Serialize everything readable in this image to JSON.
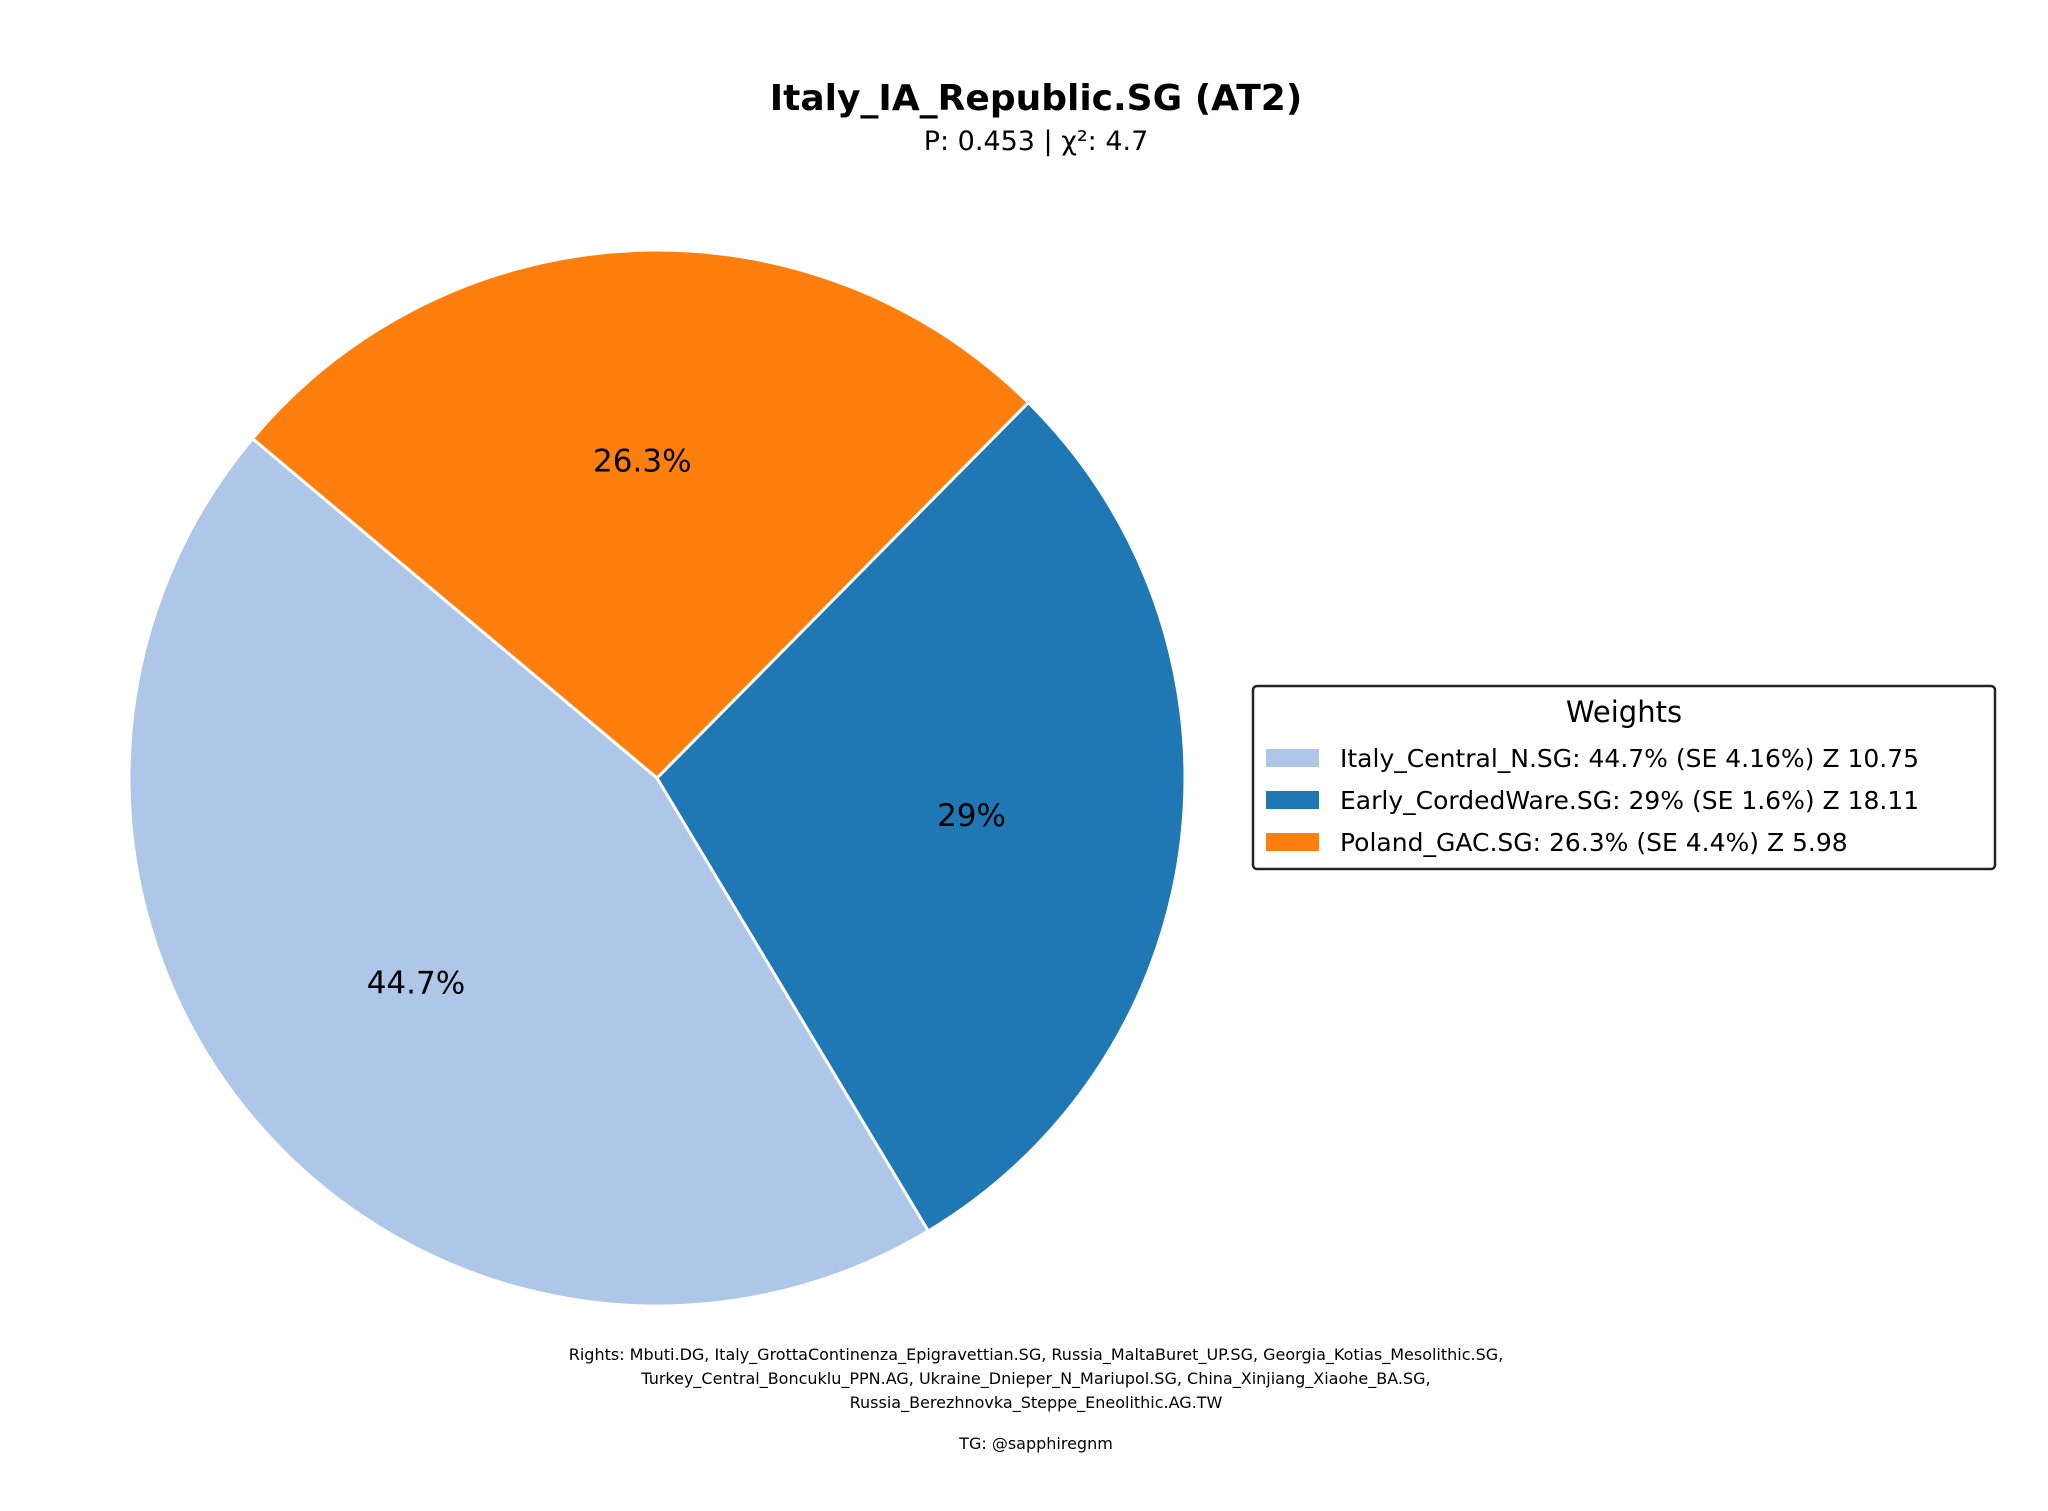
{
  "chart_data": {
    "type": "pie",
    "title": "Italy_IA_Republic.SG (AT2)",
    "subtitle": "P: 0.453 | χ²: 4.7",
    "start_angle_deg": 140,
    "direction": "counterclockwise",
    "slices": [
      {
        "name": "Italy_Central_N.SG",
        "value": 44.7,
        "label": "44.7%",
        "color": "#aec7e8",
        "legend": "Italy_Central_N.SG: 44.7% (SE 4.16%) Z 10.75"
      },
      {
        "name": "Early_CordedWare.SG",
        "value": 29.0,
        "label": "29%",
        "color": "#1f77b4",
        "legend": "Early_CordedWare.SG: 29% (SE 1.6%) Z 18.11"
      },
      {
        "name": "Poland_GAC.SG",
        "value": 26.3,
        "label": "26.3%",
        "color": "#ff7f0e",
        "legend": "Poland_GAC.SG: 26.3% (SE 4.4%) Z 5.98"
      }
    ],
    "legend": {
      "title": "Weights",
      "placement": "right"
    },
    "footnote": {
      "lines": [
        "Rights: Mbuti.DG, Italy_GrottaContinenza_Epigravettian.SG, Russia_MaltaBuret_UP.SG, Georgia_Kotias_Mesolithic.SG,",
        "Turkey_Central_Boncuklu_PPN.AG, Ukraine_Dnieper_N_Mariupol.SG, China_Xinjiang_Xiaohe_BA.SG,",
        "Russia_Berezhnovka_Steppe_Eneolithic.AG.TW"
      ],
      "credit": "TG: @sapphiregnm"
    }
  }
}
